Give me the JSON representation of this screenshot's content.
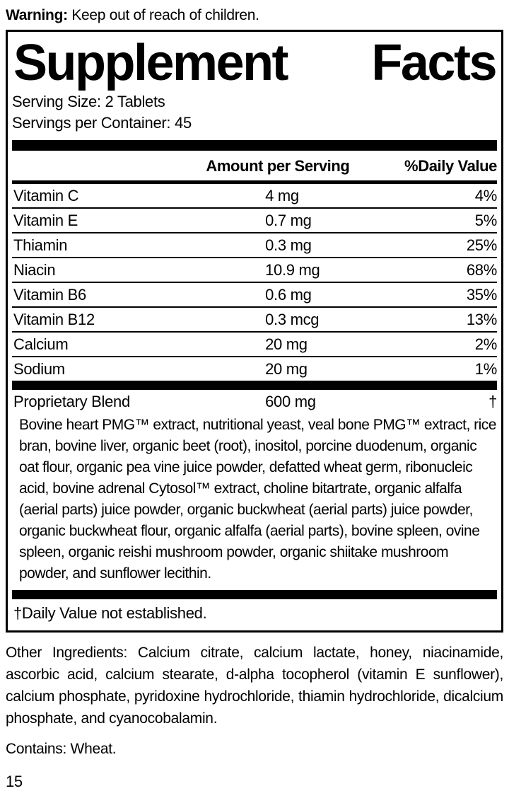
{
  "warning": {
    "label": "Warning:",
    "text": " Keep out of reach of children."
  },
  "panel": {
    "title_left": "Supplement",
    "title_right": "Facts",
    "serving_size": "Serving Size: 2 Tablets",
    "servings_per_container": "Servings per Container: 45",
    "columns": {
      "amount": "Amount per Serving",
      "daily_value": "%Daily Value"
    },
    "rows": [
      {
        "name": "Vitamin C",
        "amount": "4 mg",
        "dv": "4%"
      },
      {
        "name": "Vitamin E",
        "amount": "0.7 mg",
        "dv": "5%"
      },
      {
        "name": "Thiamin",
        "amount": "0.3 mg",
        "dv": "25%"
      },
      {
        "name": "Niacin",
        "amount": "10.9 mg",
        "dv": "68%"
      },
      {
        "name": "Vitamin B6",
        "amount": "0.6 mg",
        "dv": "35%"
      },
      {
        "name": "Vitamin B12",
        "amount": "0.3 mcg",
        "dv": "13%"
      },
      {
        "name": "Calcium",
        "amount": "20 mg",
        "dv": "2%"
      },
      {
        "name": "Sodium",
        "amount": "20 mg",
        "dv": "1%"
      }
    ],
    "blend": {
      "name": "Proprietary Blend",
      "amount": "600 mg",
      "dv": "†",
      "description": "Bovine heart PMG™ extract, nutritional yeast, veal bone PMG™ extract, rice bran, bovine liver, organic beet (root), inositol, porcine duodenum, organic oat flour, organic pea vine juice powder, defatted wheat germ, ribonucleic acid, bovine adrenal Cytosol™ extract, choline bitartrate, organic alfalfa (aerial parts) juice powder, organic buckwheat (aerial parts) juice powder, organic buckwheat flour, organic alfalfa (aerial parts), bovine spleen, ovine spleen, organic reishi mushroom powder, organic shiitake mushroom powder, and sunflower lecithin."
    },
    "footnote": "†Daily Value not established."
  },
  "other_ingredients": "Other Ingredients: Calcium citrate, calcium lactate, honey, niacinamide, ascorbic acid, calcium stearate, d-alpha tocopherol (vitamin E sunflower), calcium phosphate, pyridoxine hydrochloride, thiamin hydrochloride, dicalcium phosphate, and cyanocobalamin.",
  "contains": "Contains: Wheat.",
  "page_number": "15",
  "colors": {
    "ink": "#000000",
    "paper": "#ffffff"
  }
}
